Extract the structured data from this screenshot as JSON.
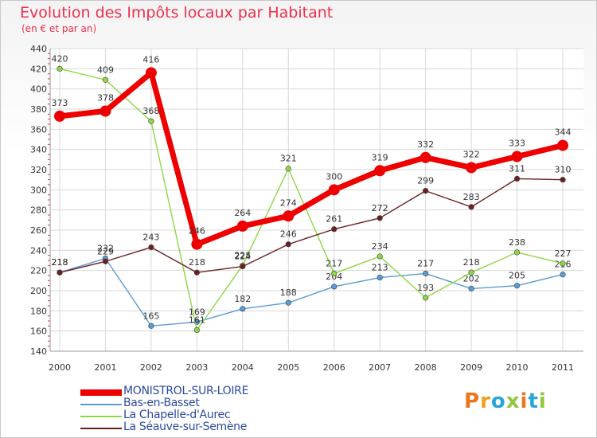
{
  "chart_data": {
    "type": "line",
    "title": "Evolution des Impôts locaux par Habitant",
    "subtitle": "(en € et par an)",
    "categories": [
      "2000",
      "2001",
      "2002",
      "2003",
      "2004",
      "2005",
      "2006",
      "2007",
      "2008",
      "2009",
      "2010",
      "2011"
    ],
    "ylim": [
      140,
      440
    ],
    "yticks": [
      140,
      160,
      180,
      200,
      220,
      240,
      260,
      280,
      300,
      320,
      340,
      360,
      380,
      400,
      420,
      440
    ],
    "grid": true,
    "series": [
      {
        "name": "MONISTROL-SUR-LOIRE",
        "color": "#ee0000",
        "values": [
          373,
          378,
          416,
          246,
          264,
          274,
          300,
          319,
          332,
          322,
          333,
          344
        ]
      },
      {
        "name": "Bas-en-Basset",
        "color": "#5b9bd5",
        "values": [
          218,
          232,
          165,
          169,
          182,
          188,
          204,
          213,
          217,
          202,
          205,
          216
        ]
      },
      {
        "name": "La Chapelle-d'Aurec",
        "color": "#8fd645",
        "values": [
          420,
          409,
          368,
          161,
          225,
          321,
          217,
          234,
          193,
          218,
          238,
          227
        ]
      },
      {
        "name": "La Séauve-sur-Semène",
        "color": "#6b1f1f",
        "values": [
          218,
          229,
          243,
          218,
          224,
          246,
          261,
          272,
          299,
          283,
          311,
          310
        ]
      }
    ]
  },
  "brand": {
    "text": "Proxiti"
  }
}
